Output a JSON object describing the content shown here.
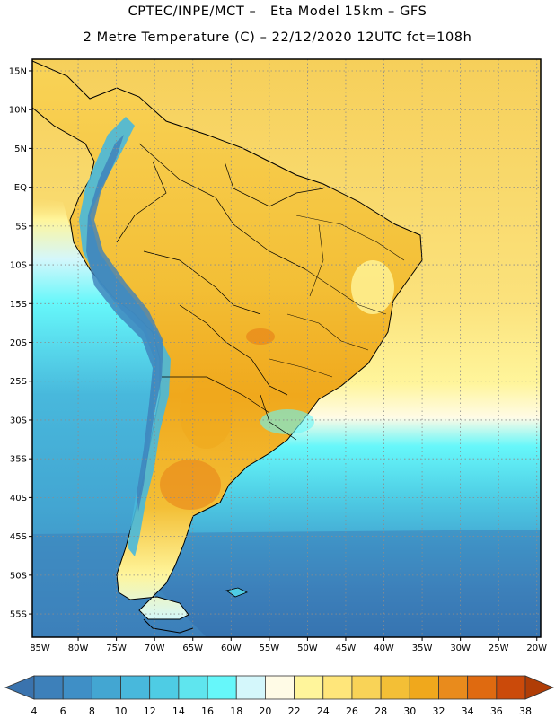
{
  "title": {
    "line1": "CPTEC/INPE/MCT –   Eta Model 15km – GFS",
    "line2": "2 Metre Temperature (C) – 22/12/2020 12UTC fct=108h"
  },
  "map": {
    "lat_labels": [
      "15N",
      "10N",
      "5N",
      "EQ",
      "5S",
      "10S",
      "15S",
      "20S",
      "25S",
      "30S",
      "35S",
      "40S",
      "45S",
      "50S",
      "55S"
    ],
    "lon_labels": [
      "85W",
      "80W",
      "75W",
      "70W",
      "65W",
      "60W",
      "55W",
      "50W",
      "45W",
      "40W",
      "35W",
      "30W",
      "25W",
      "20W"
    ],
    "lat_range": [
      16.5,
      -58
    ],
    "lon_range": [
      -86,
      -19.5
    ]
  },
  "colorbar": {
    "labels": [
      "4",
      "6",
      "8",
      "10",
      "12",
      "14",
      "16",
      "18",
      "20",
      "22",
      "24",
      "26",
      "28",
      "30",
      "32",
      "34",
      "36",
      "38"
    ],
    "colors": [
      "#3a73ae",
      "#3d80ba",
      "#3f8fc6",
      "#43a6d2",
      "#48b8dc",
      "#4ecce4",
      "#5fe5ee",
      "#66f7fa",
      "#d4f7fb",
      "#fffbe6",
      "#fff59b",
      "#ffe67a",
      "#f9d357",
      "#f3bf36",
      "#f0a81c",
      "#e98b1c",
      "#df6a10",
      "#cb4a0a",
      "#b03d06"
    ]
  }
}
